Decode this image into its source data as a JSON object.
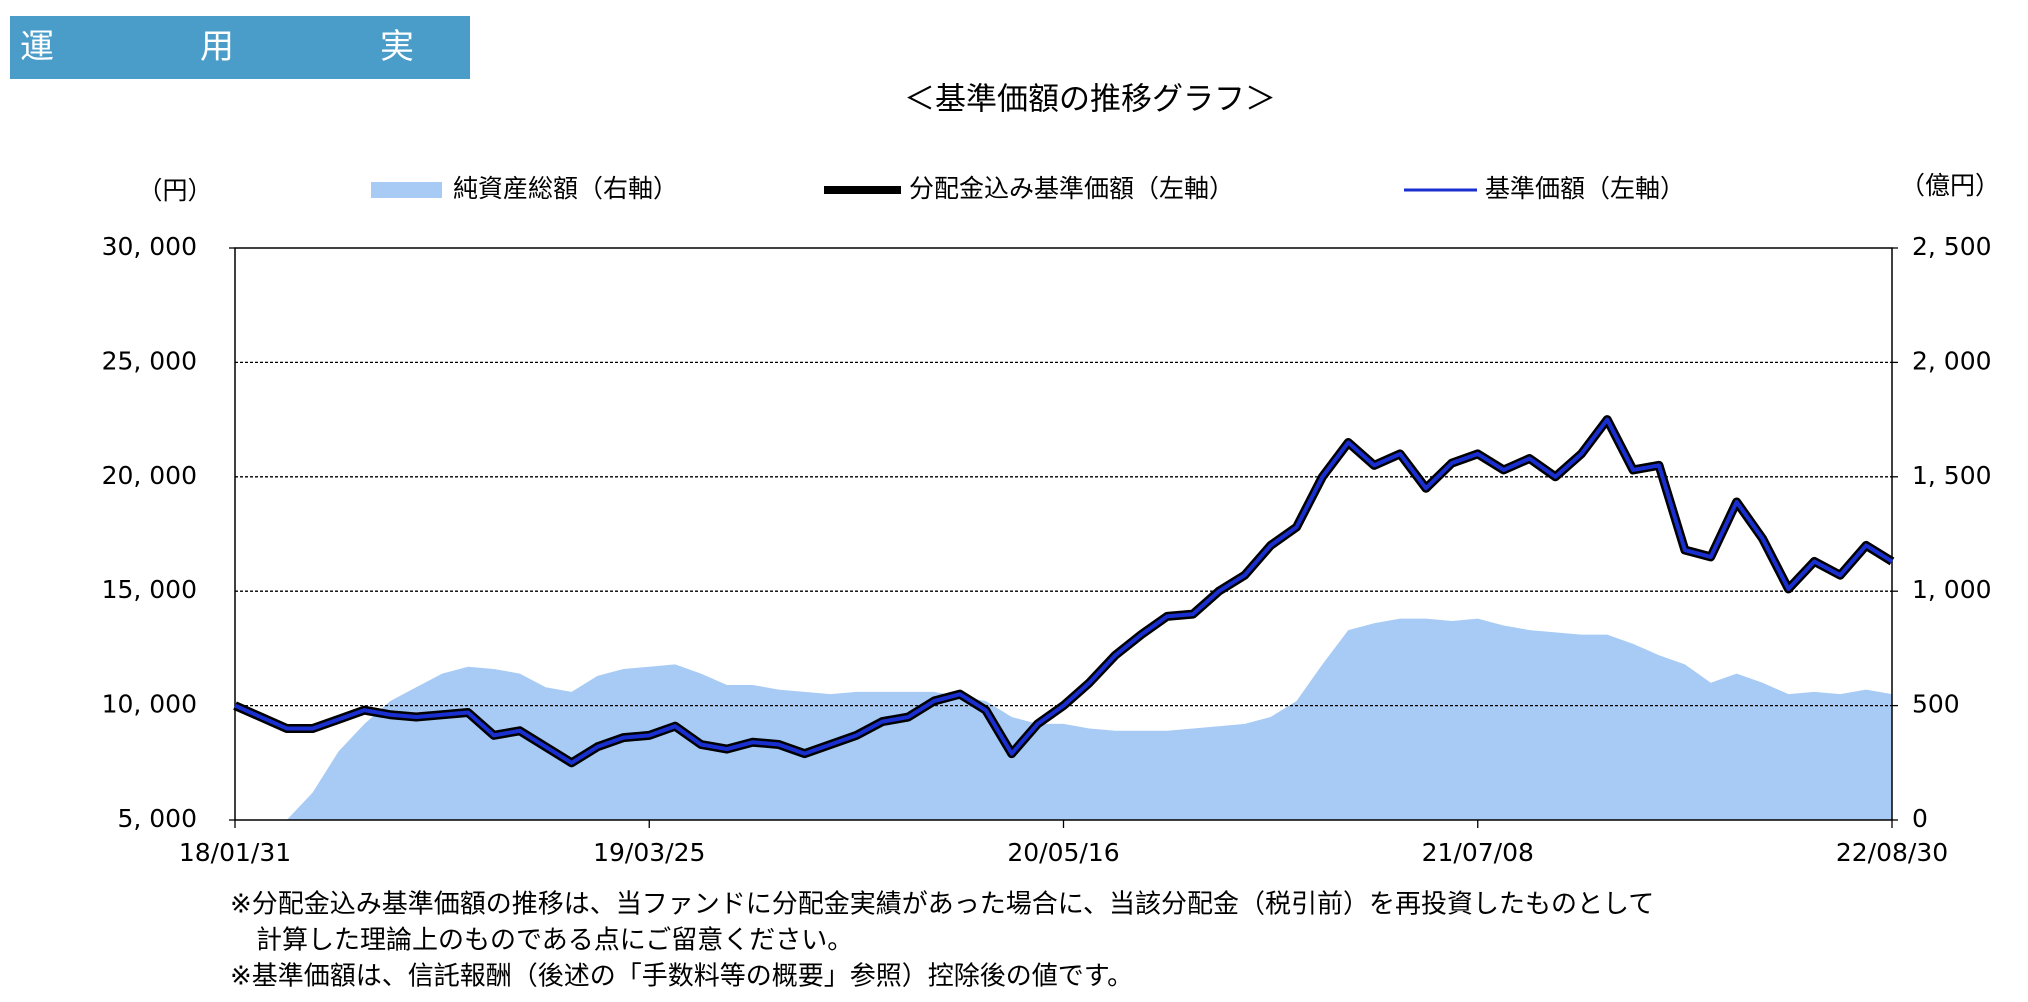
{
  "header": {
    "title": "運　　　　用　　　　実　　　　績"
  },
  "chart_data": {
    "type": "line",
    "title": "＜基準価額の推移グラフ＞",
    "y_label": "（円）",
    "y2_label": "（億円）",
    "categories": [
      "18/01/31",
      null,
      null,
      null,
      null,
      null,
      null,
      null,
      null,
      null,
      null,
      null,
      null,
      null,
      null,
      null,
      "19/03/25",
      null,
      null,
      null,
      null,
      null,
      null,
      null,
      null,
      null,
      null,
      null,
      null,
      null,
      null,
      null,
      "20/05/16",
      null,
      null,
      null,
      null,
      null,
      null,
      null,
      null,
      null,
      null,
      null,
      null,
      null,
      null,
      null,
      "21/07/08",
      null,
      null,
      null,
      null,
      null,
      null,
      null,
      null,
      null,
      null,
      null,
      null,
      null,
      null,
      null,
      "22/08/30"
    ],
    "ylim": [
      5000,
      30000
    ],
    "yticks": [
      {
        "value": 5000,
        "label": "5, 000"
      },
      {
        "value": 10000,
        "label": "10, 000"
      },
      {
        "value": 15000,
        "label": "15, 000"
      },
      {
        "value": 20000,
        "label": "20, 000"
      },
      {
        "value": 25000,
        "label": "25, 000"
      },
      {
        "value": 30000,
        "label": "30, 000"
      }
    ],
    "y2lim": [
      0,
      2500
    ],
    "y2ticks": [
      0,
      500,
      {
        "value": 1000,
        "label": "1, 000"
      },
      {
        "value": 1500,
        "label": "1, 500"
      },
      {
        "value": 2000,
        "label": "2, 000"
      },
      {
        "value": 2500,
        "label": "2, 500"
      }
    ],
    "grid": true,
    "series": [
      {
        "name": "純資産総額（右軸）",
        "type": "area",
        "axis": "y2",
        "color": "#a8cbf5",
        "values": [
          0,
          0,
          0,
          120,
          300,
          420,
          520,
          580,
          640,
          670,
          660,
          640,
          580,
          560,
          630,
          660,
          670,
          680,
          640,
          590,
          590,
          570,
          560,
          550,
          560,
          560,
          560,
          560,
          540,
          520,
          450,
          420,
          420,
          400,
          390,
          390,
          390,
          400,
          410,
          420,
          450,
          520,
          680,
          830,
          860,
          880,
          880,
          870,
          880,
          850,
          830,
          820,
          810,
          810,
          770,
          720,
          680,
          600,
          640,
          600,
          550,
          560,
          550,
          570,
          550
        ]
      },
      {
        "name": "分配金込み基準価額（左軸）",
        "type": "line",
        "axis": "y",
        "color": "#000000",
        "values": [
          10000,
          9500,
          9000,
          9000,
          9400,
          9800,
          9600,
          9500,
          9600,
          9700,
          8700,
          8900,
          8200,
          7500,
          8200,
          8600,
          8700,
          9100,
          8300,
          8100,
          8400,
          8300,
          7900,
          8300,
          8700,
          9300,
          9500,
          10200,
          10500,
          9800,
          7900,
          9200,
          10000,
          11000,
          12200,
          13100,
          13900,
          14000,
          15000,
          15700,
          17000,
          17800,
          20000,
          21500,
          20500,
          21000,
          19500,
          20600,
          21000,
          20300,
          20800,
          20000,
          21000,
          22500,
          20300,
          20500,
          16800,
          16500,
          18900,
          17300,
          15100,
          16300,
          15700,
          17000,
          16300
        ]
      },
      {
        "name": "基準価額（左軸）",
        "type": "line",
        "axis": "y",
        "color": "#1a2fd0",
        "values": [
          10000,
          9500,
          9000,
          9000,
          9400,
          9800,
          9600,
          9500,
          9600,
          9700,
          8700,
          8900,
          8200,
          7500,
          8200,
          8600,
          8700,
          9100,
          8300,
          8100,
          8400,
          8300,
          7900,
          8300,
          8700,
          9300,
          9500,
          10200,
          10500,
          9800,
          7900,
          9200,
          10000,
          11000,
          12200,
          13100,
          13900,
          14000,
          15000,
          15700,
          17000,
          17800,
          20000,
          21500,
          20500,
          21000,
          19500,
          20600,
          21000,
          20300,
          20800,
          20000,
          21000,
          22500,
          20300,
          20500,
          16800,
          16500,
          18900,
          17300,
          15100,
          16300,
          15700,
          17000,
          16300
        ]
      }
    ],
    "notes": [
      "※分配金込み基準価額の推移は、当ファンドに分配金実績があった場合に、当該分配金（税引前）を再投資したものとして",
      "　計算した理論上のものである点にご留意ください。",
      "※基準価額は、信託報酬（後述の「手数料等の概要」参照）控除後の値です。"
    ]
  }
}
